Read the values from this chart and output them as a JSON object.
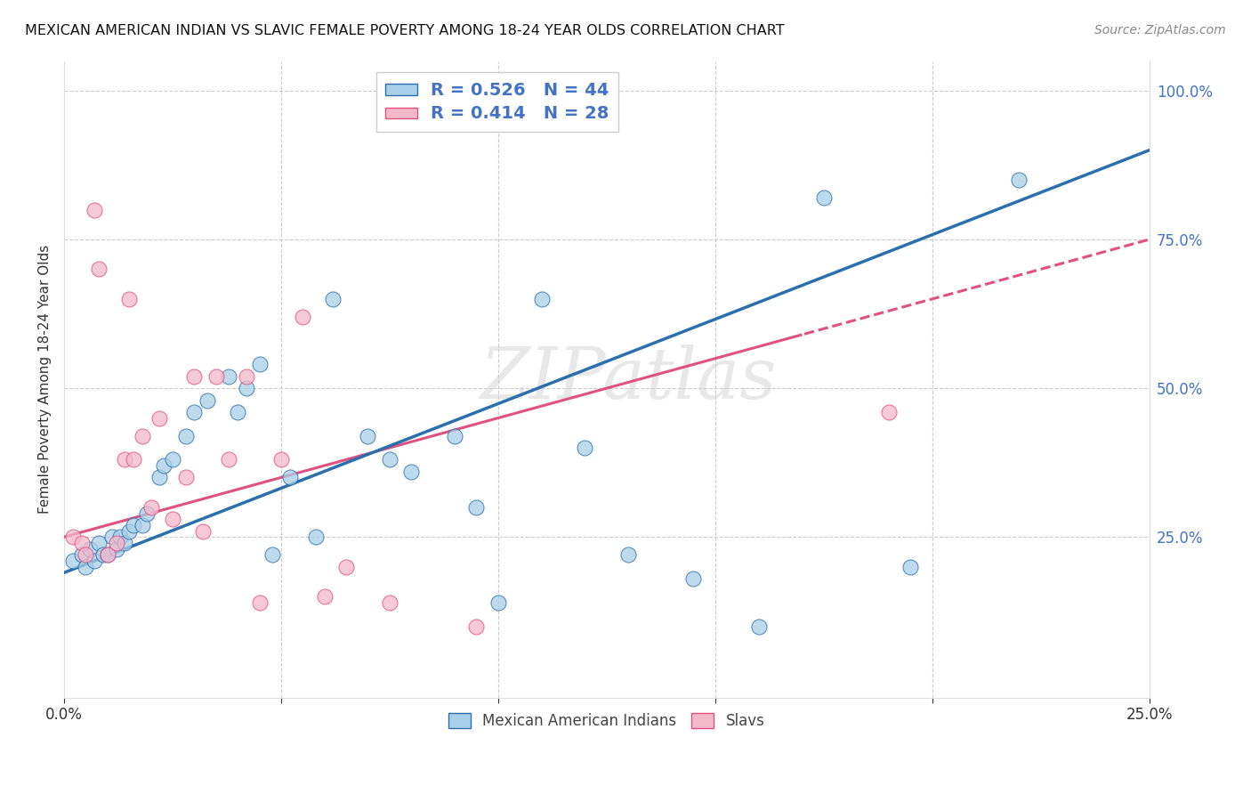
{
  "title": "MEXICAN AMERICAN INDIAN VS SLAVIC FEMALE POVERTY AMONG 18-24 YEAR OLDS CORRELATION CHART",
  "source": "Source: ZipAtlas.com",
  "ylabel": "Female Poverty Among 18-24 Year Olds",
  "r_blue": 0.526,
  "n_blue": 44,
  "r_pink": 0.414,
  "n_pink": 28,
  "legend_label_blue": "Mexican American Indians",
  "legend_label_pink": "Slavs",
  "blue_color": "#a8d0e8",
  "pink_color": "#f4b8cb",
  "trendline_blue": "#2c6fad",
  "trendline_pink": "#e05080",
  "text_color": "#4472c4",
  "watermark": "ZIPatlas",
  "xlim": [
    0.0,
    0.25
  ],
  "ylim": [
    -0.02,
    1.05
  ],
  "blue_x": [
    0.002,
    0.004,
    0.005,
    0.006,
    0.007,
    0.008,
    0.009,
    0.01,
    0.011,
    0.012,
    0.013,
    0.014,
    0.015,
    0.016,
    0.018,
    0.019,
    0.022,
    0.023,
    0.025,
    0.028,
    0.03,
    0.033,
    0.038,
    0.04,
    0.042,
    0.045,
    0.048,
    0.052,
    0.058,
    0.062,
    0.07,
    0.075,
    0.08,
    0.09,
    0.095,
    0.1,
    0.11,
    0.12,
    0.13,
    0.145,
    0.16,
    0.175,
    0.195,
    0.22
  ],
  "blue_y": [
    0.21,
    0.22,
    0.2,
    0.23,
    0.21,
    0.24,
    0.22,
    0.22,
    0.25,
    0.23,
    0.25,
    0.24,
    0.26,
    0.27,
    0.27,
    0.29,
    0.35,
    0.37,
    0.38,
    0.42,
    0.46,
    0.48,
    0.52,
    0.46,
    0.5,
    0.54,
    0.22,
    0.35,
    0.25,
    0.65,
    0.42,
    0.38,
    0.36,
    0.42,
    0.3,
    0.14,
    0.65,
    0.4,
    0.22,
    0.18,
    0.1,
    0.82,
    0.2,
    0.85
  ],
  "pink_x": [
    0.002,
    0.004,
    0.005,
    0.007,
    0.008,
    0.01,
    0.012,
    0.014,
    0.015,
    0.016,
    0.018,
    0.02,
    0.022,
    0.025,
    0.028,
    0.03,
    0.032,
    0.035,
    0.038,
    0.042,
    0.045,
    0.05,
    0.055,
    0.06,
    0.065,
    0.075,
    0.095,
    0.19
  ],
  "pink_y": [
    0.25,
    0.24,
    0.22,
    0.8,
    0.7,
    0.22,
    0.24,
    0.38,
    0.65,
    0.38,
    0.42,
    0.3,
    0.45,
    0.28,
    0.35,
    0.52,
    0.26,
    0.52,
    0.38,
    0.52,
    0.14,
    0.38,
    0.62,
    0.15,
    0.2,
    0.14,
    0.1,
    0.46
  ]
}
